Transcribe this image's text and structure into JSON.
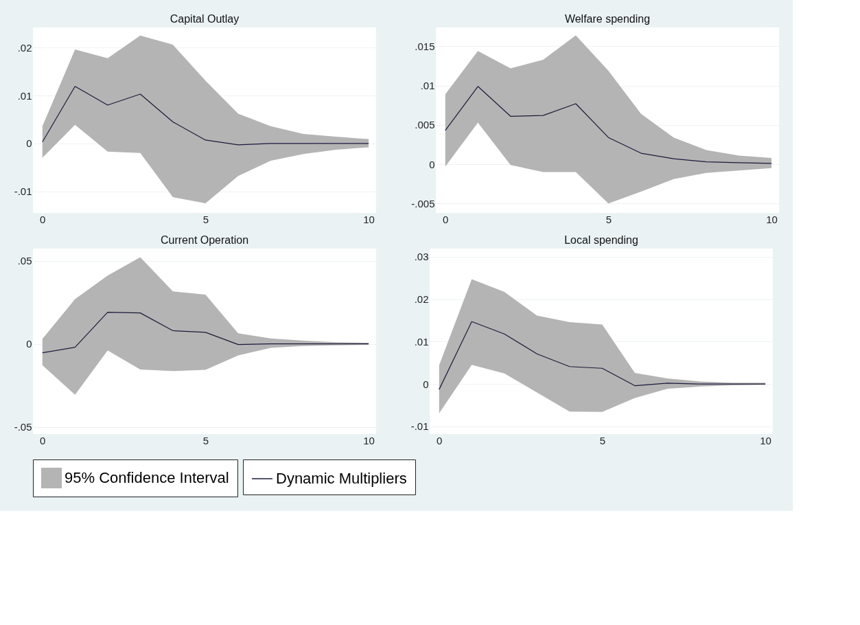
{
  "chart_data": [
    {
      "type": "line",
      "title": "Capital Outlay",
      "annotations": [
        "95% Confidence Interval"
      ],
      "x": [
        0,
        1,
        2,
        3,
        4,
        5,
        6,
        7,
        8,
        9,
        10
      ],
      "xlim": [
        -0.29,
        10.23
      ],
      "xticks": [
        0,
        5,
        10
      ],
      "ylim": [
        -0.0145,
        0.0242
      ],
      "yticks": [
        {
          "value": -0.01,
          "label": "-.01"
        },
        0,
        {
          "value": 0.01,
          "label": ".01"
        },
        {
          "value": 0.02,
          "label": ".02"
        }
      ],
      "grid": "y",
      "legend": "bottom",
      "marker": "none",
      "line_style": "solid",
      "series": [
        {
          "name": "Dynamic Multipliers",
          "color": "#1a1a3a",
          "values": [
            0.0003,
            0.0119,
            0.008,
            0.0103,
            0.0045,
            0.0007,
            -0.0003,
            0,
            0,
            0,
            0
          ],
          "upper": [
            0.0036,
            0.0196,
            0.0178,
            0.0225,
            0.0206,
            0.0131,
            0.0062,
            0.0036,
            0.002,
            0.0014,
            0.0009
          ],
          "lower": [
            -0.003,
            0.0039,
            -0.0017,
            -0.002,
            -0.0112,
            -0.0125,
            -0.0068,
            -0.0036,
            -0.0022,
            -0.0013,
            -0.0008
          ]
        }
      ]
    },
    {
      "type": "line",
      "title": "Welfare spending",
      "x": [
        0,
        1,
        2,
        3,
        4,
        5,
        6,
        7,
        8,
        9,
        10
      ],
      "xlim": [
        -0.29,
        10.23
      ],
      "xticks": [
        0,
        5,
        10
      ],
      "ylim": [
        -0.0062,
        0.0174
      ],
      "yticks": [
        {
          "value": -0.005,
          "label": "-.005"
        },
        0,
        {
          "value": 0.005,
          "label": ".005"
        },
        {
          "value": 0.01,
          "label": ".01"
        },
        {
          "value": 0.015,
          "label": ".015"
        }
      ],
      "grid": "y",
      "legend": "bottom",
      "marker": "none",
      "line_style": "solid",
      "series": [
        {
          "name": "Dynamic Multipliers",
          "color": "#1a1a3a",
          "values": [
            0.0043,
            0.0099,
            0.0061,
            0.0062,
            0.0077,
            0.0034,
            0.0014,
            0.0007,
            0.0003,
            0.0002,
            0.0001
          ],
          "upper": [
            0.0089,
            0.0144,
            0.0122,
            0.0133,
            0.0164,
            0.0119,
            0.0064,
            0.0034,
            0.0018,
            0.0011,
            0.0008
          ],
          "lower": [
            -0.0003,
            0.0053,
            -0.0001,
            -0.001,
            -0.001,
            -0.005,
            -0.0035,
            -0.0019,
            -0.0011,
            -0.0008,
            -0.0005
          ]
        }
      ]
    },
    {
      "type": "line",
      "title": "Current Operation",
      "x": [
        0,
        1,
        2,
        3,
        4,
        5,
        6,
        7,
        8,
        9,
        10
      ],
      "xlim": [
        -0.29,
        10.23
      ],
      "xticks": [
        0,
        5,
        10
      ],
      "ylim": [
        -0.0543,
        0.0573
      ],
      "yticks": [
        {
          "value": -0.05,
          "label": "-.05"
        },
        0,
        {
          "value": 0.05,
          "label": ".05"
        }
      ],
      "grid": "y",
      "legend": "bottom",
      "marker": "none",
      "line_style": "solid",
      "series": [
        {
          "name": "Dynamic Multipliers",
          "color": "#1a1a3a",
          "values": [
            -0.0054,
            -0.0021,
            0.019,
            0.0186,
            0.0079,
            0.0069,
            -0.0004,
            0,
            0,
            0,
            0
          ],
          "upper": [
            0.0029,
            0.0269,
            0.0411,
            0.0521,
            0.0316,
            0.0296,
            0.0064,
            0.0033,
            0.0019,
            0.001,
            0.0007
          ],
          "lower": [
            -0.0129,
            -0.0306,
            -0.004,
            -0.0154,
            -0.0164,
            -0.0157,
            -0.007,
            -0.0024,
            -0.0013,
            -0.0009,
            -0.0006
          ]
        }
      ]
    },
    {
      "type": "line",
      "title": "Local spending",
      "x": [
        0,
        1,
        2,
        3,
        4,
        5,
        6,
        7,
        8,
        9,
        10
      ],
      "xlim": [
        -0.29,
        10.23
      ],
      "xticks": [
        0,
        5,
        10
      ],
      "ylim": [
        -0.0118,
        0.0319
      ],
      "yticks": [
        {
          "value": -0.01,
          "label": "-.01"
        },
        0,
        {
          "value": 0.01,
          "label": ".01"
        },
        {
          "value": 0.02,
          "label": ".02"
        },
        {
          "value": 0.03,
          "label": ".03"
        }
      ],
      "grid": "y",
      "legend": "bottom",
      "marker": "none",
      "line_style": "solid",
      "series": [
        {
          "name": "Dynamic Multipliers",
          "color": "#1a1a3a",
          "values": [
            -0.0013,
            0.0147,
            0.0118,
            0.0071,
            0.0041,
            0.0037,
            -0.0004,
            0.0002,
            0,
            0,
            0
          ],
          "upper": [
            0.0044,
            0.0247,
            0.0217,
            0.0161,
            0.0146,
            0.014,
            0.0026,
            0.0013,
            0.0006,
            0.0003,
            0.0003
          ],
          "lower": [
            -0.0069,
            0.0045,
            0.0025,
            -0.002,
            -0.0065,
            -0.0066,
            -0.0033,
            -0.0011,
            -0.0006,
            -0.0003,
            -0.0002
          ]
        }
      ]
    }
  ]
}
